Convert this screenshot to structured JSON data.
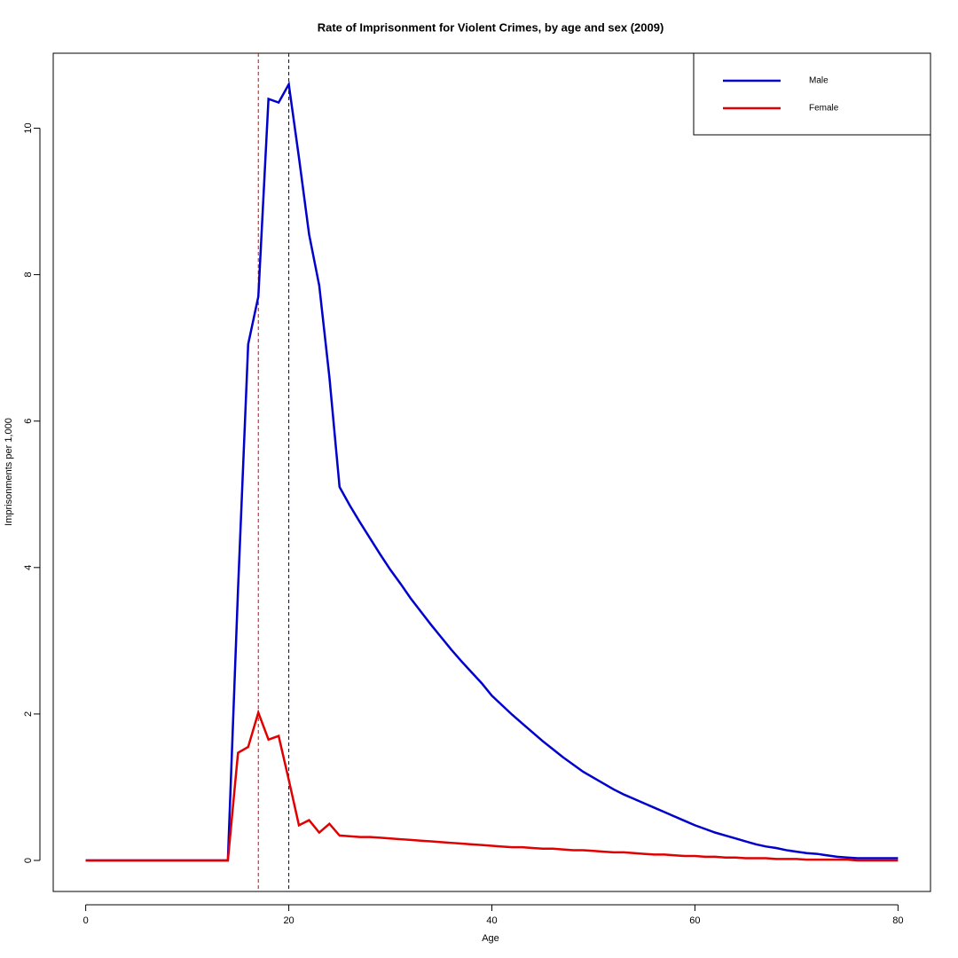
{
  "chart_data": {
    "type": "line",
    "title": "Rate of Imprisonment for Violent Crimes, by age and sex (2009)",
    "x_label": "Age",
    "y_label": "Imprisonments per 1,000",
    "x": [
      0,
      1,
      2,
      3,
      4,
      5,
      6,
      7,
      8,
      9,
      10,
      11,
      12,
      13,
      14,
      15,
      16,
      17,
      18,
      19,
      20,
      21,
      22,
      23,
      24,
      25,
      26,
      27,
      28,
      29,
      30,
      31,
      32,
      33,
      34,
      35,
      36,
      37,
      38,
      39,
      40,
      41,
      42,
      43,
      44,
      45,
      46,
      47,
      48,
      49,
      50,
      51,
      52,
      53,
      54,
      55,
      56,
      57,
      58,
      59,
      60,
      61,
      62,
      63,
      64,
      65,
      66,
      67,
      68,
      69,
      70,
      71,
      72,
      73,
      74,
      75,
      76,
      77,
      78,
      79,
      80
    ],
    "series": [
      {
        "name": "Male",
        "color": "#0000cd",
        "values": [
          0,
          0,
          0,
          0,
          0,
          0,
          0,
          0,
          0,
          0,
          0,
          0,
          0,
          0,
          0,
          3.7,
          7.05,
          7.7,
          10.4,
          10.35,
          10.6,
          9.6,
          8.55,
          7.85,
          6.6,
          5.1,
          4.85,
          4.62,
          4.4,
          4.18,
          3.97,
          3.78,
          3.58,
          3.4,
          3.22,
          3.05,
          2.88,
          2.72,
          2.57,
          2.42,
          2.25,
          2.12,
          1.99,
          1.87,
          1.75,
          1.63,
          1.52,
          1.41,
          1.31,
          1.21,
          1.13,
          1.05,
          0.97,
          0.9,
          0.84,
          0.78,
          0.72,
          0.66,
          0.6,
          0.54,
          0.48,
          0.43,
          0.38,
          0.34,
          0.3,
          0.26,
          0.22,
          0.19,
          0.17,
          0.14,
          0.12,
          0.1,
          0.09,
          0.07,
          0.05,
          0.04,
          0.03,
          0.03,
          0.03,
          0.03,
          0.03
        ]
      },
      {
        "name": "Female",
        "color": "#e00000",
        "values": [
          0,
          0,
          0,
          0,
          0,
          0,
          0,
          0,
          0,
          0,
          0,
          0,
          0,
          0,
          0,
          1.47,
          1.55,
          2.02,
          1.65,
          1.7,
          1.1,
          0.48,
          0.55,
          0.38,
          0.5,
          0.34,
          0.33,
          0.32,
          0.32,
          0.31,
          0.3,
          0.29,
          0.28,
          0.27,
          0.26,
          0.25,
          0.24,
          0.23,
          0.22,
          0.21,
          0.2,
          0.19,
          0.18,
          0.18,
          0.17,
          0.16,
          0.16,
          0.15,
          0.14,
          0.14,
          0.13,
          0.12,
          0.11,
          0.11,
          0.1,
          0.09,
          0.08,
          0.08,
          0.07,
          0.06,
          0.06,
          0.05,
          0.05,
          0.04,
          0.04,
          0.03,
          0.03,
          0.03,
          0.02,
          0.02,
          0.02,
          0.01,
          0.01,
          0.01,
          0.01,
          0.01,
          0,
          0,
          0,
          0,
          0
        ]
      }
    ],
    "vlines": [
      {
        "x": 17,
        "color": "#e00000"
      },
      {
        "x": 20,
        "color": "#00008b"
      }
    ],
    "xlim": [
      -3.2,
      83.2
    ],
    "xticks": [
      0,
      20,
      40,
      60,
      80
    ],
    "ylim": [
      -0.424,
      11.024
    ],
    "yticks": [
      0,
      2,
      4,
      6,
      8,
      10
    ],
    "legend_position": "top-right"
  }
}
